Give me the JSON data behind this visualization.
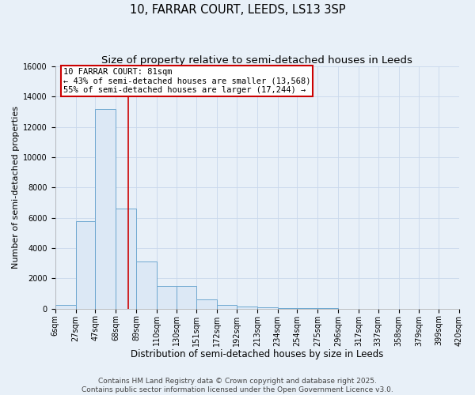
{
  "title": "10, FARRAR COURT, LEEDS, LS13 3SP",
  "subtitle": "Size of property relative to semi-detached houses in Leeds",
  "xlabel": "Distribution of semi-detached houses by size in Leeds",
  "ylabel": "Number of semi-detached properties",
  "bin_edges": [
    6,
    27,
    47,
    68,
    89,
    110,
    130,
    151,
    172,
    192,
    213,
    234,
    254,
    275,
    296,
    317,
    337,
    358,
    379,
    399,
    420
  ],
  "bar_heights": [
    250,
    5800,
    13200,
    6600,
    3100,
    1500,
    1500,
    600,
    250,
    150,
    100,
    50,
    30,
    20,
    10,
    5,
    3,
    2,
    1,
    1
  ],
  "bar_color": "#dce8f5",
  "bar_edge_color": "#6fa8d0",
  "bar_edge_width": 0.7,
  "red_line_x": 81,
  "red_line_color": "#cc0000",
  "annotation_text": "10 FARRAR COURT: 81sqm\n← 43% of semi-detached houses are smaller (13,568)\n55% of semi-detached houses are larger (17,244) →",
  "annotation_box_facecolor": "#ffffff",
  "annotation_box_edgecolor": "#cc0000",
  "ylim": [
    0,
    16000
  ],
  "yticks": [
    0,
    2000,
    4000,
    6000,
    8000,
    10000,
    12000,
    14000,
    16000
  ],
  "tick_labels": [
    "6sqm",
    "27sqm",
    "47sqm",
    "68sqm",
    "89sqm",
    "110sqm",
    "130sqm",
    "151sqm",
    "172sqm",
    "192sqm",
    "213sqm",
    "234sqm",
    "254sqm",
    "275sqm",
    "296sqm",
    "317sqm",
    "337sqm",
    "358sqm",
    "379sqm",
    "399sqm",
    "420sqm"
  ],
  "grid_color": "#c8d8ec",
  "background_color": "#e8f0f8",
  "plot_bg_color": "#e8f0f8",
  "footer_line1": "Contains HM Land Registry data © Crown copyright and database right 2025.",
  "footer_line2": "Contains public sector information licensed under the Open Government Licence v3.0.",
  "title_fontsize": 10.5,
  "subtitle_fontsize": 9.5,
  "xlabel_fontsize": 8.5,
  "ylabel_fontsize": 8,
  "tick_fontsize": 7,
  "annotation_fontsize": 7.5,
  "footer_fontsize": 6.5
}
